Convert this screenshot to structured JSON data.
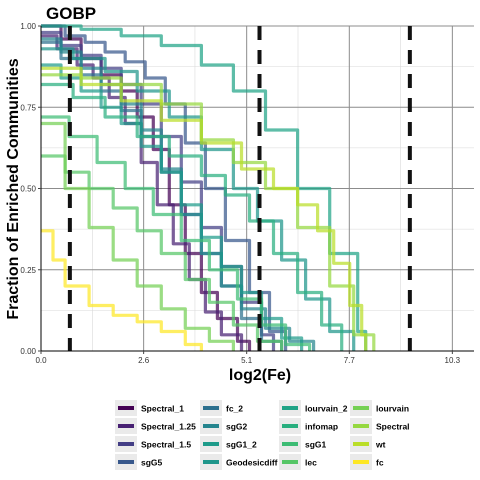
{
  "chart_data": {
    "type": "line",
    "title": "GOBP",
    "xlabel": "log2(Fe)",
    "ylabel": "Fraction of Enriched Communities",
    "xlim": [
      0,
      10.8
    ],
    "ylim": [
      0,
      1
    ],
    "x_ticks": [
      "0.0",
      "2.6",
      "5.1",
      "7.7",
      "10.3"
    ],
    "y_ticks": [
      "0.00",
      "0.25",
      "0.50",
      "0.75",
      "1.00"
    ],
    "x_tick_values": [
      0,
      2.56,
      5.13,
      7.69,
      10.26
    ],
    "y_tick_values": [
      0,
      0.25,
      0.5,
      0.75,
      1.0
    ],
    "grid": true,
    "legend_position": "bottom",
    "vlines": [
      0.72,
      5.45,
      9.2
    ],
    "series": [
      {
        "name": "Spectral_1",
        "color": "#440154",
        "x": [
          0,
          0.5,
          1.0,
          1.5,
          2.0,
          2.4,
          2.8,
          3.2,
          3.6,
          4.0,
          4.4,
          4.9,
          5.2
        ],
        "y": [
          1.0,
          0.96,
          0.9,
          0.85,
          0.8,
          0.72,
          0.62,
          0.45,
          0.3,
          0.18,
          0.1,
          0.03,
          0
        ]
      },
      {
        "name": "Spectral_1.25",
        "color": "#482173",
        "x": [
          0,
          0.4,
          0.9,
          1.3,
          1.7,
          2.1,
          2.5,
          2.9,
          3.3,
          3.7,
          4.1,
          4.5,
          5.0
        ],
        "y": [
          0.97,
          0.93,
          0.88,
          0.84,
          0.78,
          0.7,
          0.58,
          0.45,
          0.33,
          0.22,
          0.12,
          0.05,
          0
        ]
      },
      {
        "name": "Spectral_1.5",
        "color": "#433e85",
        "x": [
          0,
          0.5,
          1.0,
          1.5,
          2.0,
          2.5,
          3.0,
          3.5,
          4.0,
          4.5,
          5.0,
          5.5,
          5.8
        ],
        "y": [
          0.98,
          0.94,
          0.91,
          0.87,
          0.82,
          0.76,
          0.66,
          0.52,
          0.38,
          0.26,
          0.15,
          0.05,
          0
        ]
      },
      {
        "name": "sgG5",
        "color": "#38588c",
        "x": [
          0,
          0.6,
          1.1,
          1.6,
          2.1,
          2.6,
          3.1,
          3.6,
          4.1,
          4.6,
          5.2,
          5.7,
          6.1
        ],
        "y": [
          1.0,
          0.97,
          0.95,
          0.92,
          0.89,
          0.84,
          0.76,
          0.64,
          0.5,
          0.34,
          0.18,
          0.06,
          0
        ]
      },
      {
        "name": "fc_2",
        "color": "#2d708e",
        "x": [
          0,
          0.5,
          1.0,
          1.5,
          2.0,
          2.5,
          3.0,
          3.5,
          4.0,
          4.5,
          5.0,
          5.5,
          6.0
        ],
        "y": [
          0.95,
          0.9,
          0.85,
          0.8,
          0.74,
          0.66,
          0.55,
          0.42,
          0.3,
          0.2,
          0.1,
          0.03,
          0
        ]
      },
      {
        "name": "sgG2",
        "color": "#25858e",
        "x": [
          0,
          0.5,
          1.0,
          1.5,
          2.0,
          2.5,
          3.0,
          3.5,
          4.0,
          4.5,
          5.0,
          5.6,
          6.2,
          6.8
        ],
        "y": [
          0.96,
          0.92,
          0.87,
          0.82,
          0.76,
          0.68,
          0.56,
          0.42,
          0.3,
          0.2,
          0.13,
          0.07,
          0.03,
          0
        ]
      },
      {
        "name": "sgG1_2",
        "color": "#1e9b8a",
        "x": [
          0,
          0.5,
          1.0,
          1.5,
          2.0,
          2.5,
          3.0,
          3.5,
          4.0,
          4.5,
          5.0,
          5.5,
          6.0,
          6.5
        ],
        "y": [
          0.88,
          0.84,
          0.8,
          0.75,
          0.7,
          0.63,
          0.55,
          0.45,
          0.35,
          0.26,
          0.18,
          0.1,
          0.04,
          0
        ]
      },
      {
        "name": "Geodesicdiff",
        "color": "#1f968b",
        "x": [
          0,
          0.8,
          1.6,
          2.4,
          3.2,
          4.0,
          4.8,
          5.4,
          6.0,
          6.6,
          7.2,
          7.8
        ],
        "y": [
          0.93,
          0.9,
          0.86,
          0.8,
          0.72,
          0.62,
          0.5,
          0.4,
          0.28,
          0.16,
          0.06,
          0
        ]
      },
      {
        "name": "lourvain_2",
        "color": "#20a386",
        "x": [
          0,
          1.0,
          2.0,
          3.0,
          4.0,
          4.8,
          5.6,
          6.4,
          7.2,
          7.9,
          8.1
        ],
        "y": [
          1.0,
          0.99,
          0.97,
          0.94,
          0.88,
          0.8,
          0.68,
          0.5,
          0.3,
          0.06,
          0
        ]
      },
      {
        "name": "infomap",
        "color": "#29af7f",
        "x": [
          0,
          0.8,
          1.6,
          2.4,
          3.2,
          4.0,
          4.6,
          5.2,
          5.8,
          6.4,
          7.0,
          7.5
        ],
        "y": [
          0.82,
          0.78,
          0.72,
          0.66,
          0.6,
          0.54,
          0.48,
          0.4,
          0.3,
          0.18,
          0.08,
          0
        ]
      },
      {
        "name": "sgG1",
        "color": "#3dbc74",
        "x": [
          0,
          0.7,
          1.4,
          2.1,
          2.8,
          3.5,
          4.2,
          4.9,
          5.5,
          6.1,
          6.7
        ],
        "y": [
          0.72,
          0.66,
          0.58,
          0.5,
          0.42,
          0.34,
          0.25,
          0.16,
          0.08,
          0.02,
          0
        ]
      },
      {
        "name": "lec",
        "color": "#56c667",
        "x": [
          0,
          0.6,
          1.2,
          1.8,
          2.4,
          3.0,
          3.6,
          4.2,
          4.8,
          5.4,
          6.0
        ],
        "y": [
          0.6,
          0.55,
          0.5,
          0.44,
          0.37,
          0.3,
          0.22,
          0.15,
          0.08,
          0.03,
          0
        ]
      },
      {
        "name": "lourvain",
        "color": "#75d054",
        "x": [
          0,
          0.6,
          1.2,
          1.8,
          2.4,
          3.0,
          3.6,
          4.2,
          4.8
        ],
        "y": [
          0.7,
          0.5,
          0.38,
          0.28,
          0.2,
          0.13,
          0.07,
          0.03,
          0
        ]
      },
      {
        "name": "Spectral",
        "color": "#95d840",
        "x": [
          0,
          1.0,
          2.0,
          3.0,
          4.0,
          4.8,
          5.6,
          6.4,
          7.2,
          7.8,
          8.3
        ],
        "y": [
          0.85,
          0.84,
          0.82,
          0.76,
          0.65,
          0.58,
          0.5,
          0.38,
          0.2,
          0.05,
          0
        ]
      },
      {
        "name": "wt",
        "color": "#bade28",
        "x": [
          0,
          1.0,
          2.0,
          3.0,
          4.0,
          5.0,
          5.8,
          6.4,
          6.9,
          7.3,
          7.7,
          8.0,
          8.1
        ],
        "y": [
          0.87,
          0.82,
          0.77,
          0.71,
          0.64,
          0.56,
          0.5,
          0.45,
          0.37,
          0.27,
          0.14,
          0.05,
          0
        ]
      },
      {
        "name": "fc",
        "color": "#fde725",
        "x": [
          0,
          0.3,
          0.6,
          1.2,
          1.8,
          2.4,
          3.0,
          3.6,
          4.0
        ],
        "y": [
          0.37,
          0.28,
          0.2,
          0.14,
          0.11,
          0.09,
          0.06,
          0.02,
          0
        ]
      }
    ]
  }
}
